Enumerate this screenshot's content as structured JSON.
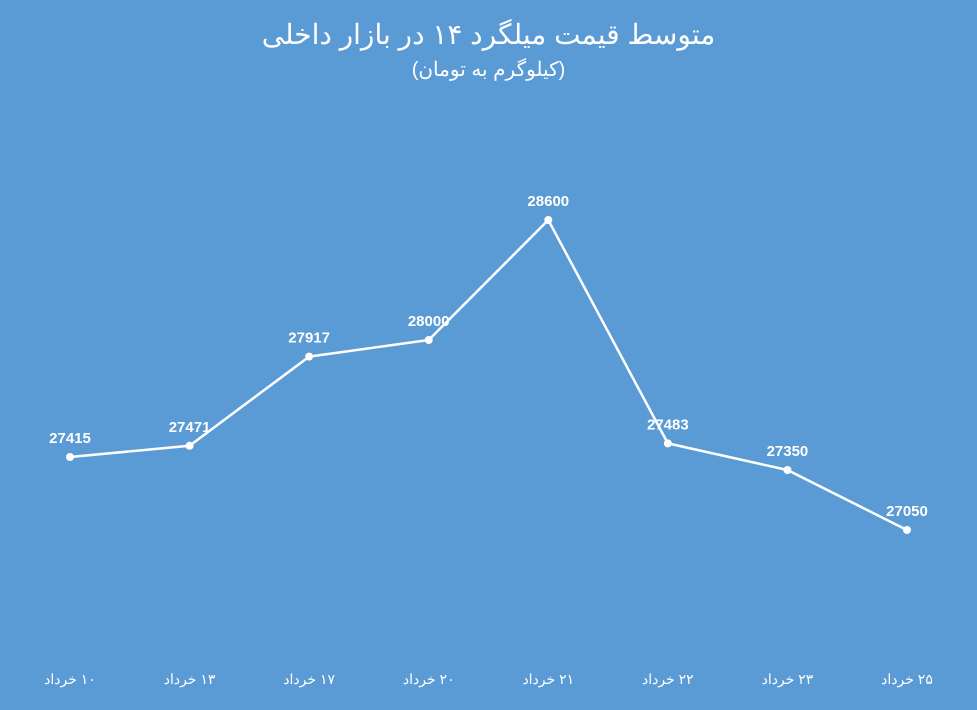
{
  "chart": {
    "type": "line",
    "title": "متوسط قیمت میلگرد ۱۴ در بازار داخلی",
    "subtitle": "(کیلوگرم به تومان)",
    "title_fontsize": 28,
    "subtitle_fontsize": 20,
    "title_color": "#ffffff",
    "background_color": "#5b9bd5",
    "line_color": "#ffffff",
    "line_width": 2.5,
    "marker_color": "#ffffff",
    "marker_size": 4,
    "drop_line_gradient_top": "#ffffff",
    "drop_line_gradient_bottom": "rgba(255,255,255,0)",
    "drop_line_width": 1.5,
    "data_label_color": "#ffffff",
    "data_label_fontsize": 15,
    "data_label_weight": "bold",
    "x_label_color": "#ffffff",
    "x_label_fontsize": 14,
    "ylim": [
      26500,
      29000
    ],
    "categories": [
      "۱۰ خرداد",
      "۱۳ خرداد",
      "۱۷ خرداد",
      "۲۰ خرداد",
      "۲۱ خرداد",
      "۲۲ خرداد",
      "۲۳ خرداد",
      "۲۵ خرداد"
    ],
    "values": [
      27415,
      27471,
      27917,
      28000,
      28600,
      27483,
      27350,
      27050
    ],
    "value_labels": [
      "27415",
      "27471",
      "27917",
      "28000",
      "28600",
      "27483",
      "27350",
      "27050"
    ]
  }
}
